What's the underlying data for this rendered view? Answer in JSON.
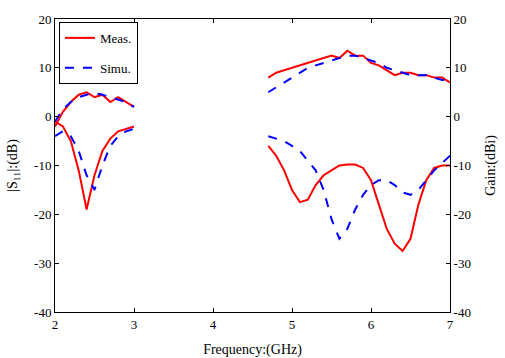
{
  "chart_data": {
    "type": "line",
    "x": [
      2.0,
      2.1,
      2.2,
      2.3,
      2.4,
      2.5,
      2.6,
      2.7,
      2.8,
      2.9,
      3.0,
      4.0,
      4.7,
      4.8,
      4.9,
      5.0,
      5.1,
      5.2,
      5.3,
      5.4,
      5.5,
      5.6,
      5.7,
      5.8,
      5.9,
      6.0,
      6.1,
      6.2,
      6.3,
      6.4,
      6.5,
      6.6,
      6.7,
      6.8,
      6.9,
      7.0
    ],
    "series": [
      {
        "name": "Meas.",
        "color": "#ff0000",
        "line_style": "solid",
        "values": [
          -1,
          -2,
          -5,
          -11,
          -19,
          -12,
          -7,
          -4.5,
          -3,
          -2.5,
          -2,
          null,
          -6,
          -8,
          -11,
          -15,
          -17.5,
          -17,
          -14,
          -12,
          -11,
          -10,
          -9.8,
          -9.8,
          -10.5,
          -13,
          -18,
          -23,
          -26,
          -27.5,
          -25,
          -18,
          -13,
          -10.5,
          -10,
          -10
        ]
      },
      {
        "name": "Simu.",
        "color": "#0000ff",
        "line_style": "dash",
        "values": [
          -4,
          -3,
          -4,
          -7,
          -12,
          -15,
          -10,
          -6,
          -4,
          -3,
          -2.5,
          null,
          -4,
          -4.5,
          -5,
          -6,
          -7,
          -9,
          -11,
          -15,
          -21,
          -25,
          -23,
          -19,
          -16,
          -14,
          -13,
          -13,
          -14,
          -15.5,
          -16,
          -15,
          -13,
          -11,
          -9.5,
          -8
        ]
      },
      {
        "name": "Meas.",
        "color": "#ff0000",
        "line_style": "solid",
        "axis": "y2",
        "values": [
          -2,
          1,
          3,
          4.5,
          5,
          4,
          4.5,
          3,
          4,
          3,
          2,
          null,
          8,
          9,
          9.5,
          10,
          10.5,
          11,
          11.5,
          12,
          12.5,
          12,
          13.5,
          12.5,
          12.5,
          11,
          10.5,
          9.5,
          8.5,
          9,
          9,
          8.5,
          8.5,
          8,
          8,
          7
        ]
      },
      {
        "name": "Simu.",
        "color": "#0000ff",
        "line_style": "dash",
        "axis": "y2",
        "values": [
          -1,
          1.5,
          3,
          4,
          4.5,
          4.8,
          4.5,
          4,
          3.5,
          3,
          2,
          null,
          5,
          6,
          7,
          8,
          9,
          10,
          10.5,
          11,
          11.5,
          12,
          12.5,
          12.5,
          12,
          11.5,
          11,
          10,
          9.5,
          9,
          8.5,
          8.5,
          8.5,
          8,
          7.5,
          7.5
        ]
      }
    ],
    "x_label": "Frequency:(GHz)",
    "y_label": "|S₁₁|:(dB)",
    "y2_label": "Gain:(dBi)",
    "xlim": [
      2,
      7
    ],
    "xticks": [
      2,
      3,
      4,
      5,
      6,
      7
    ],
    "ylim": [
      -40,
      20
    ],
    "yticks": [
      -40,
      -30,
      -20,
      -10,
      0,
      10,
      20
    ],
    "y2lim": [
      -40,
      20
    ],
    "y2ticks": [
      -40,
      -30,
      -20,
      -10,
      0,
      10,
      20
    ],
    "grid": false,
    "legend": "top-left"
  }
}
